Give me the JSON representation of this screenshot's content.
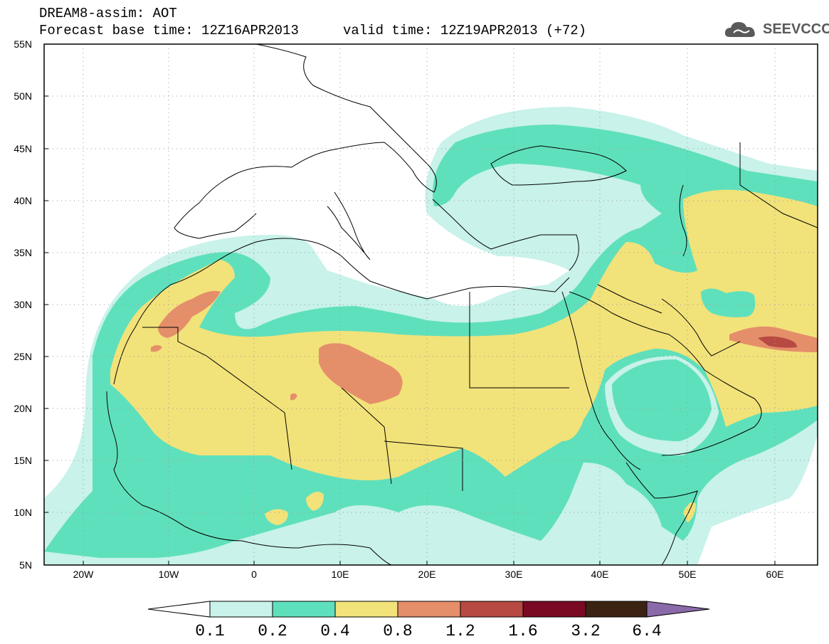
{
  "header": {
    "title": "DREAM8-assim: AOT",
    "forecast_base": "Forecast base time: 12Z16APR2013",
    "valid_time": "valid time: 12Z19APR2013 (+72)"
  },
  "logo": {
    "text": "SEEVCCC",
    "icon": "cloud-icon"
  },
  "map": {
    "lat_labels": [
      "55N",
      "50N",
      "45N",
      "40N",
      "35N",
      "30N",
      "25N",
      "20N",
      "15N",
      "10N",
      "5N"
    ],
    "lon_labels": [
      "20W",
      "10W",
      "0",
      "10E",
      "20E",
      "30E",
      "40E",
      "50E",
      "60E"
    ]
  },
  "colorbar": {
    "labels": [
      "0.1",
      "0.2",
      "0.4",
      "0.8",
      "1.2",
      "1.6",
      "3.2",
      "6.4"
    ],
    "colors": [
      "#c8f2ea",
      "#5fe0bc",
      "#f2e27a",
      "#e58e6a",
      "#b74a42",
      "#7a0a24",
      "#3b2314",
      "#8a6aa8"
    ]
  }
}
